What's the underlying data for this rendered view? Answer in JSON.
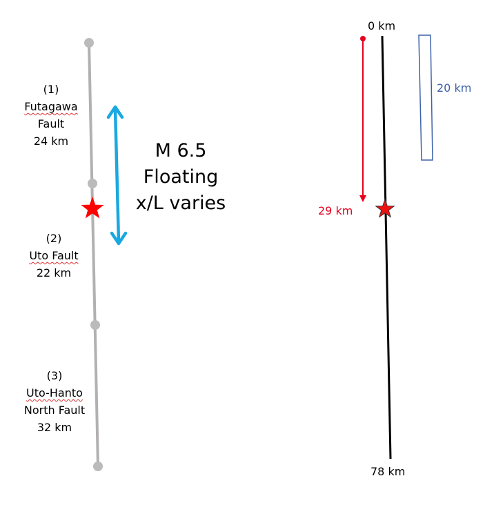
{
  "left_panel": {
    "segments": [
      {
        "number": "(1)",
        "name_lines": [
          "Futagawa",
          "Fault"
        ],
        "length": "24 km"
      },
      {
        "number": "(2)",
        "name_lines": [
          "Uto Fault"
        ],
        "length": "22 km"
      },
      {
        "number": "(3)",
        "name_lines": [
          "Uto-Hanto",
          "North Fault"
        ],
        "length": "32 km"
      }
    ],
    "rupture_text": [
      "M 6.5",
      "Floating",
      "x/L varies"
    ]
  },
  "right_panel": {
    "top_label": "0 km",
    "bottom_label": "78 km",
    "epicenter_label": "29 km",
    "window_label": "20 km"
  },
  "colors": {
    "fault_line": "#b3b0b0",
    "node": "#bbbbbb",
    "arrow_blue": "#1aa8e0",
    "star": "#ff0000",
    "red_text": "#e8001c",
    "blue_box": "#3d62a8"
  },
  "icons": [
    "epicenter-star-icon",
    "double-arrow-icon",
    "down-arrow-icon"
  ]
}
